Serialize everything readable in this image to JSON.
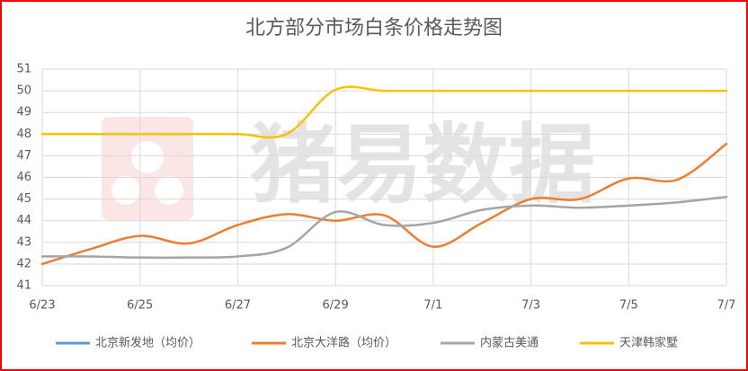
{
  "chart_data": {
    "type": "line",
    "title": "北方部分市场白条价格走势图",
    "watermark": "猪易数据",
    "categories": [
      "6/23",
      null,
      "6/25",
      null,
      "6/27",
      null,
      "6/29",
      null,
      "7/1",
      null,
      "7/3",
      null,
      "7/5",
      null,
      "7/7"
    ],
    "series": [
      {
        "name": "北京新发地（均价）",
        "color": "#5b9bd5",
        "values": [
          null,
          null,
          null,
          null,
          null,
          null,
          null,
          null,
          null,
          null,
          null,
          null,
          null,
          null,
          null
        ]
      },
      {
        "name": "北京大洋路（均价）",
        "color": "#ed7d31",
        "values": [
          42.0,
          42.7,
          43.3,
          42.95,
          43.8,
          44.3,
          44.0,
          44.25,
          42.8,
          43.9,
          45.0,
          45.0,
          45.95,
          45.9,
          47.55
        ]
      },
      {
        "name": "内蒙古美通",
        "color": "#a5a5a5",
        "values": [
          42.35,
          42.35,
          42.3,
          42.3,
          42.35,
          42.75,
          44.4,
          43.8,
          43.9,
          44.5,
          44.7,
          44.6,
          44.7,
          44.85,
          45.1
        ]
      },
      {
        "name": "天津韩家墅",
        "color": "#ffc000",
        "values": [
          48,
          48,
          48,
          48,
          48,
          48,
          50.05,
          50,
          50,
          50,
          50,
          50,
          50,
          50,
          50
        ]
      }
    ],
    "ylim": [
      41,
      51
    ],
    "yticks": [
      41,
      42,
      43,
      44,
      45,
      46,
      47,
      48,
      49,
      50,
      51
    ],
    "grid": true,
    "legend": "bottom"
  }
}
